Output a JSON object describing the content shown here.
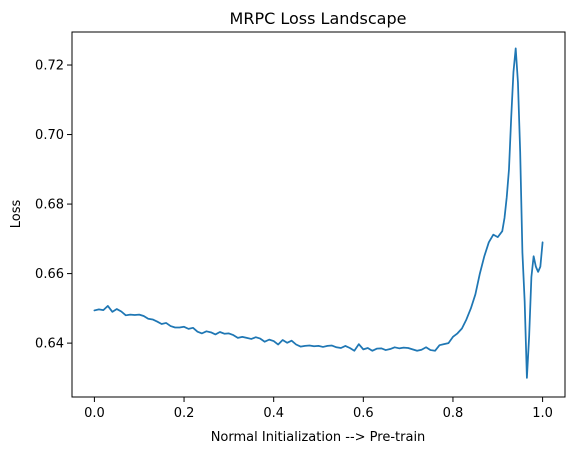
{
  "chart_data": {
    "type": "line",
    "title": "MRPC Loss Landscape",
    "xlabel": "Normal Initialization --> Pre-train",
    "ylabel": "Loss",
    "xlim": [
      -0.05,
      1.05
    ],
    "ylim": [
      0.6245,
      0.7295
    ],
    "grid": false,
    "xticks": [
      0.0,
      0.2,
      0.4,
      0.6,
      0.8,
      1.0
    ],
    "xtick_labels": [
      "0.0",
      "0.2",
      "0.4",
      "0.6",
      "0.8",
      "1.0"
    ],
    "yticks": [
      0.64,
      0.66,
      0.68,
      0.7,
      0.72
    ],
    "ytick_labels": [
      "0.64",
      "0.66",
      "0.68",
      "0.70",
      "0.72"
    ],
    "series": [
      {
        "color": "#1f77b4",
        "x": [
          0.0,
          0.01,
          0.02,
          0.03,
          0.04,
          0.05,
          0.06,
          0.07,
          0.08,
          0.09,
          0.1,
          0.11,
          0.12,
          0.13,
          0.14,
          0.15,
          0.16,
          0.17,
          0.18,
          0.19,
          0.2,
          0.21,
          0.22,
          0.23,
          0.24,
          0.25,
          0.26,
          0.27,
          0.28,
          0.29,
          0.3,
          0.31,
          0.32,
          0.33,
          0.34,
          0.35,
          0.36,
          0.37,
          0.38,
          0.39,
          0.4,
          0.41,
          0.42,
          0.43,
          0.44,
          0.45,
          0.46,
          0.47,
          0.48,
          0.49,
          0.5,
          0.51,
          0.52,
          0.53,
          0.54,
          0.55,
          0.56,
          0.57,
          0.58,
          0.59,
          0.6,
          0.61,
          0.62,
          0.63,
          0.64,
          0.65,
          0.66,
          0.67,
          0.68,
          0.69,
          0.7,
          0.71,
          0.72,
          0.73,
          0.74,
          0.75,
          0.76,
          0.77,
          0.78,
          0.79,
          0.8,
          0.81,
          0.82,
          0.83,
          0.84,
          0.85,
          0.86,
          0.87,
          0.88,
          0.89,
          0.9,
          0.91,
          0.915,
          0.92,
          0.925,
          0.93,
          0.935,
          0.94,
          0.945,
          0.95,
          0.955,
          0.96,
          0.965,
          0.97,
          0.975,
          0.98,
          0.985,
          0.99,
          0.995,
          1.0
        ],
        "y": [
          0.6494,
          0.6497,
          0.6495,
          0.6507,
          0.649,
          0.6498,
          0.6491,
          0.648,
          0.6482,
          0.6481,
          0.6482,
          0.6478,
          0.647,
          0.6468,
          0.6462,
          0.6455,
          0.6458,
          0.6449,
          0.6445,
          0.6445,
          0.6447,
          0.6441,
          0.6444,
          0.6433,
          0.6428,
          0.6434,
          0.6431,
          0.6425,
          0.6432,
          0.6427,
          0.6428,
          0.6423,
          0.6415,
          0.6418,
          0.6415,
          0.6412,
          0.6417,
          0.6413,
          0.6404,
          0.641,
          0.6406,
          0.6396,
          0.6409,
          0.6401,
          0.6407,
          0.6396,
          0.639,
          0.6392,
          0.6393,
          0.6391,
          0.6392,
          0.6389,
          0.6392,
          0.6393,
          0.6388,
          0.6386,
          0.6392,
          0.6386,
          0.6378,
          0.6397,
          0.6382,
          0.6386,
          0.6378,
          0.6384,
          0.6385,
          0.638,
          0.6383,
          0.6388,
          0.6385,
          0.6387,
          0.6386,
          0.6382,
          0.6378,
          0.6381,
          0.6388,
          0.638,
          0.6378,
          0.6394,
          0.6397,
          0.64,
          0.6418,
          0.6428,
          0.6442,
          0.6468,
          0.65,
          0.654,
          0.66,
          0.665,
          0.669,
          0.6712,
          0.6705,
          0.6722,
          0.676,
          0.682,
          0.69,
          0.705,
          0.718,
          0.7248,
          0.715,
          0.695,
          0.666,
          0.652,
          0.63,
          0.642,
          0.659,
          0.665,
          0.662,
          0.6605,
          0.662,
          0.669
        ]
      }
    ]
  }
}
